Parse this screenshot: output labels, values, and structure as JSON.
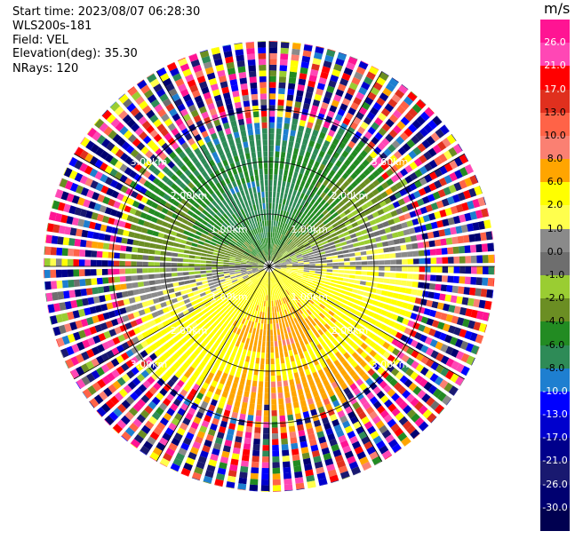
{
  "header": {
    "start_time": "Start time: 2023/08/07 06:28:30",
    "instrument": "WLS200s-181",
    "field": "Field: VEL",
    "elevation": "Elevation(deg): 35.30",
    "nrays": "NRays: 120"
  },
  "colorbar": {
    "unit": "m/s",
    "colors": [
      "#ff1493",
      "#ff47b5",
      "#ff0000",
      "#e0301e",
      "#ff6347",
      "#fa8072",
      "#ffa500",
      "#ffff00",
      "#ffff4d",
      "#8a8a8a",
      "#6e6e6e",
      "#9acd32",
      "#6b8e23",
      "#228b22",
      "#2e8b57",
      "#1e7fd0",
      "#0000ff",
      "#0000cd",
      "#00008b",
      "#191970",
      "#000070",
      "#000050"
    ],
    "labels": [
      "26.0",
      "21.0",
      "17.0",
      "13.0",
      "10.0",
      "8.0",
      "6.0",
      "2.0",
      "1.0",
      "0.0",
      "-1.0",
      "-2.0",
      "-4.0",
      "-6.0",
      "-8.0",
      "-10.0",
      "-13.0",
      "-17.0",
      "-21.0",
      "-26.0",
      "-30.0"
    ]
  },
  "chart_data": {
    "type": "heatmap",
    "projection": "polar-ppi",
    "field": "VEL",
    "units": "m/s",
    "color_range": [
      -30,
      30
    ],
    "n_rays": 120,
    "range_rings_km": [
      1.0,
      2.0,
      3.0
    ],
    "range_ring_labels": [
      "1.00km",
      "2.00km",
      "3.00km"
    ],
    "max_range_km": 4.3,
    "sector_lines_deg": [
      0,
      30,
      60,
      90,
      120,
      150,
      180,
      210,
      240,
      270,
      300,
      330
    ],
    "valid_data_max_range_km": 2.6,
    "pattern": {
      "northwest_to_north": "negative velocities -2 to -10 m/s (greens/teal)",
      "east_to_south": "positive velocities 2 to 13 m/s (yellow/orange/red)",
      "zero_line": "grey band along east and west-southwest",
      "beyond_about_2.6km": "noise (random colors)"
    }
  }
}
